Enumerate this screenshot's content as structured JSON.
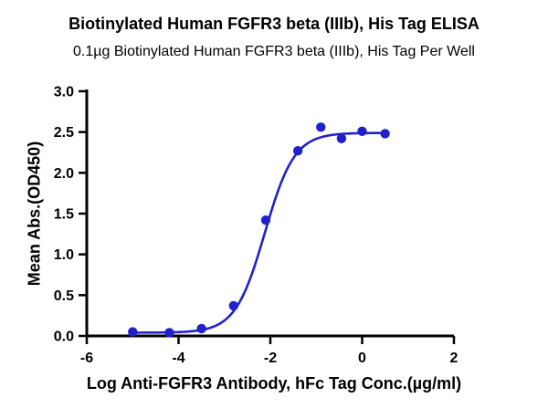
{
  "header": {
    "title": "Biotinylated Human FGFR3 beta (IIIb), His Tag ELISA",
    "subtitle": "0.1µg Biotinylated Human FGFR3 beta (IIIb), His Tag Per Well"
  },
  "chart_data": {
    "type": "scatter",
    "title": "Biotinylated Human FGFR3 beta (IIIb), His Tag ELISA",
    "subtitle": "0.1µg Biotinylated Human FGFR3 beta (IIIb), His Tag Per Well",
    "xlabel": "Log Anti-FGFR3 Antibody, hFc Tag Conc.(µg/ml)",
    "ylabel": "Mean Abs.(OD450)",
    "xlim": [
      -6,
      2
    ],
    "ylim": [
      0,
      3
    ],
    "x_ticks": [
      -6,
      -4,
      -2,
      0,
      2
    ],
    "x_tick_labels": [
      "-6",
      "-4",
      "-2",
      "0",
      "2"
    ],
    "y_ticks": [
      0.0,
      0.5,
      1.0,
      1.5,
      2.0,
      2.5,
      3.0
    ],
    "y_tick_labels": [
      "0.0",
      "0.5",
      "1.0",
      "1.5",
      "2.0",
      "2.5",
      "3.0"
    ],
    "grid": false,
    "legend": null,
    "color": "#2121cc",
    "points": [
      [
        -5.0,
        0.05
      ],
      [
        -4.2,
        0.04
      ],
      [
        -3.5,
        0.09
      ],
      [
        -2.8,
        0.37
      ],
      [
        -2.1,
        1.42
      ],
      [
        -1.4,
        2.27
      ],
      [
        -0.9,
        2.56
      ],
      [
        -0.45,
        2.42
      ],
      [
        0.0,
        2.51
      ],
      [
        0.5,
        2.48
      ]
    ],
    "fit": {
      "model": "4PL",
      "bottom": 0.04,
      "top": 2.49,
      "log_ec50": -2.12,
      "hill": 1.35,
      "x_range": [
        -5.0,
        0.5
      ]
    }
  }
}
